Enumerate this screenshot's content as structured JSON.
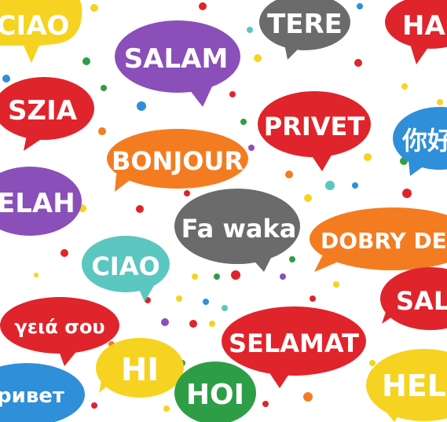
{
  "colors": {
    "yellow": "#f5d320",
    "purple": "#8a4fb8",
    "gray": "#6b6b6b",
    "red": "#e0242b",
    "orange": "#f47c20",
    "blue": "#2f8fd8",
    "teal": "#5cc6c0",
    "green": "#2e9e46"
  },
  "greetings": [
    {
      "id": "ciao-top",
      "text": "CIAO",
      "color": "yellow"
    },
    {
      "id": "salam",
      "text": "SALAM",
      "color": "purple"
    },
    {
      "id": "tere",
      "text": "TERE",
      "color": "gray"
    },
    {
      "id": "hal",
      "text": "HAL",
      "color": "red"
    },
    {
      "id": "szia",
      "text": "SZIA",
      "color": "red"
    },
    {
      "id": "privet",
      "text": "PRIVET",
      "color": "red"
    },
    {
      "id": "bonjour",
      "text": "BONJOUR",
      "color": "orange"
    },
    {
      "id": "nihao",
      "text": "你好",
      "color": "blue"
    },
    {
      "id": "elah",
      "text": "ELAH",
      "color": "purple"
    },
    {
      "id": "fa-waka",
      "text": "Fa waka",
      "color": "gray"
    },
    {
      "id": "dobry-den",
      "text": "DOBRY DEN",
      "color": "orange"
    },
    {
      "id": "ciao-mid",
      "text": "CIAO",
      "color": "teal"
    },
    {
      "id": "salu",
      "text": "SALU",
      "color": "red"
    },
    {
      "id": "geia-sou",
      "text": "γειά σου",
      "color": "red"
    },
    {
      "id": "selamat",
      "text": "SELAMAT",
      "color": "red"
    },
    {
      "id": "hi",
      "text": "HI",
      "color": "yellow"
    },
    {
      "id": "privet-cyr",
      "text": "ривет",
      "color": "blue"
    },
    {
      "id": "hoi",
      "text": "HOI",
      "color": "green"
    },
    {
      "id": "hello-partial",
      "text": "HELI",
      "color": "yellow"
    }
  ]
}
